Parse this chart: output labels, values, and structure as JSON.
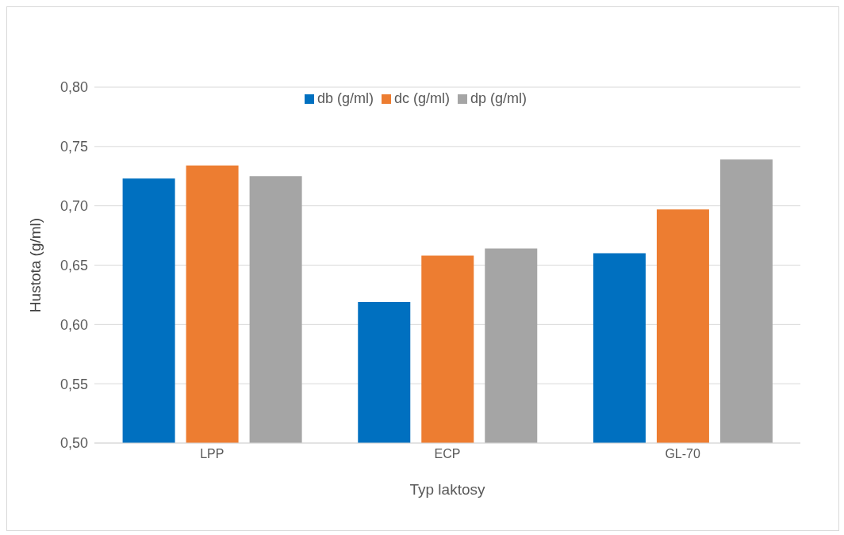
{
  "chart_data": {
    "type": "bar",
    "xlabel": "Typ laktosy",
    "ylabel": "Hustota (g/ml)",
    "categories": [
      "LPP",
      "ECP",
      "GL-70"
    ],
    "series": [
      {
        "name": "db (g/ml)",
        "color": "#0070c0",
        "values": [
          0.723,
          0.619,
          0.66
        ]
      },
      {
        "name": "dc (g/ml)",
        "color": "#ed7d31",
        "values": [
          0.734,
          0.658,
          0.697
        ]
      },
      {
        "name": "dp (g/ml)",
        "color": "#a5a5a5",
        "values": [
          0.725,
          0.664,
          0.739
        ]
      }
    ],
    "ylim": [
      0.5,
      0.8
    ],
    "yticks": [
      {
        "value": 0.5,
        "label": "0,50"
      },
      {
        "value": 0.55,
        "label": "0,55"
      },
      {
        "value": 0.6,
        "label": "0,60"
      },
      {
        "value": 0.65,
        "label": "0,65"
      },
      {
        "value": 0.7,
        "label": "0,70"
      },
      {
        "value": 0.75,
        "label": "0,75"
      },
      {
        "value": 0.8,
        "label": "0,80"
      }
    ],
    "grid": "y",
    "legend": "top"
  }
}
